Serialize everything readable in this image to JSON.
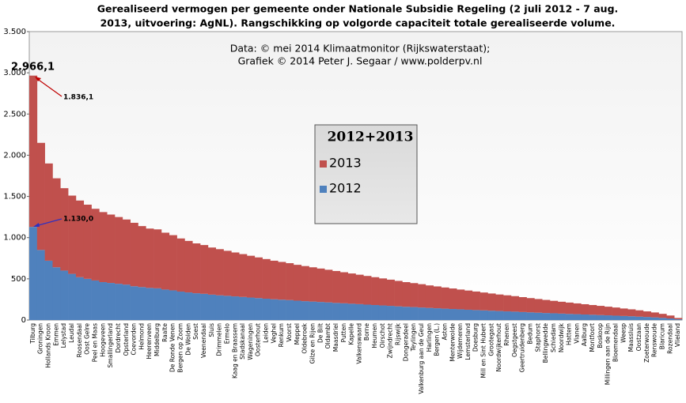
{
  "chart_data": {
    "type": "stacked_bar",
    "title": [
      "Gerealiseerd vermogen per gemeente onder Nationale Subsidie Regeling (2 juli 2012 - 7 aug.",
      "2013, uitvoering: AgNL). Rangschikking op volgorde capaciteit totale gerealiseerde volume."
    ],
    "subtitle": [
      "Data: © mei 2014 Klimaatmonitor (Rijkswaterstaat);",
      "Grafiek © 2014 Peter J. Segaar / www.polderpv.nl"
    ],
    "legend_title": "2012+2013",
    "annotations": [
      "2.966,1",
      "1.836,1",
      "1.130,0"
    ],
    "categories": [
      "Tilburg",
      "Groningen",
      "Hollands Kroon",
      "Emmen",
      "Lelystad",
      "Leudal",
      "Roosendaal",
      "Oost Gelre",
      "Peel en Maas",
      "Hoogeveen",
      "Smallingerland",
      "Dordrecht",
      "Opsterland",
      "Coevorden",
      "Helmond",
      "Heerenveen",
      "Middelburg",
      "Raalte",
      "De Ronde Venen",
      "Bergen op Zoom",
      "De Wolden",
      "Soest",
      "Veenendaal",
      "Sluis",
      "Drimmelen",
      "Ermelo",
      "Kaag en Braassem",
      "Stadskanaal",
      "Wageningen",
      "Oosterhout",
      "Leiden",
      "Veghel",
      "Renkum",
      "Voorst",
      "Meppel",
      "Oldebroek",
      "Gilze en Rijen",
      "De Bilt",
      "Oldambt",
      "Maasdriel",
      "Putten",
      "Kapelle",
      "Valkenswaard",
      "Borne",
      "Heumen",
      "Oirschot",
      "Zwijndrecht",
      "Rijswijk",
      "Dongeradeel",
      "Teylingen",
      "Valkenburg aan de Geul",
      "Harlingen",
      "Bergen (L.)",
      "Asten",
      "Menterwolde",
      "Wijdemeren",
      "Lemsterland",
      "Doesburg",
      "Mill en Sint Hubert",
      "Grootegast",
      "Noordwijkerhout",
      "Rhenen",
      "Oegstgeest",
      "Geertruidenberg",
      "Bedum",
      "Staphorst",
      "Bellingwedde",
      "Schiedam",
      "Noordwijk",
      "Hattem",
      "Vianen",
      "Aalburg",
      "Montfoort",
      "Boskoop",
      "Millingen aan de Rijn",
      "Bloemendaal",
      "Weesp",
      "Maassluis",
      "Oostzaan",
      "Zoeterwoude",
      "Renswoude",
      "Blaricum",
      "Rozendaal",
      "Vlieland"
    ],
    "series": [
      {
        "name": "2012",
        "color": "#4f81bd",
        "values": [
          1130.0,
          850,
          720,
          640,
          600,
          560,
          520,
          500,
          480,
          460,
          450,
          440,
          430,
          410,
          400,
          390,
          385,
          370,
          360,
          345,
          335,
          325,
          318,
          308,
          300,
          294,
          287,
          280,
          273,
          266,
          259,
          252,
          247,
          242,
          235,
          229,
          224,
          219,
          214,
          208,
          203,
          198,
          193,
          187,
          182,
          177,
          172,
          166,
          161,
          157,
          152,
          147,
          143,
          138,
          134,
          130,
          125,
          121,
          117,
          113,
          109,
          105,
          102,
          97,
          93,
          89,
          85,
          82,
          78,
          74,
          71,
          67,
          64,
          60,
          57,
          53,
          49,
          46,
          41,
          37,
          32,
          26,
          19,
          9
        ]
      },
      {
        "name": "2013",
        "color": "#c0504d",
        "values": [
          1836.1,
          1300,
          1180,
          1080,
          1000,
          950,
          930,
          900,
          870,
          850,
          830,
          810,
          790,
          770,
          740,
          720,
          715,
          690,
          670,
          645,
          625,
          605,
          592,
          572,
          560,
          546,
          533,
          520,
          507,
          494,
          481,
          468,
          458,
          448,
          435,
          426,
          416,
          406,
          396,
          387,
          377,
          367,
          357,
          348,
          338,
          328,
          318,
          309,
          299,
          291,
          283,
          273,
          265,
          257,
          249,
          240,
          233,
          225,
          217,
          209,
          201,
          195,
          188,
          181,
          173,
          166,
          159,
          151,
          144,
          138,
          131,
          125,
          118,
          112,
          105,
          99,
          91,
          84,
          77,
          68,
          60,
          49,
          36,
          16
        ]
      }
    ],
    "ylim": [
      0,
      3500
    ],
    "yticks": [
      0,
      500,
      {
        "value": 1000,
        "label": "1.000"
      },
      {
        "value": 1500,
        "label": "1.500"
      },
      {
        "value": 2000,
        "label": "2.000"
      },
      {
        "value": 2500,
        "label": "2.500"
      },
      {
        "value": 3000,
        "label": "3.000"
      },
      {
        "value": 3500,
        "label": "3.500"
      }
    ],
    "grid": false
  }
}
